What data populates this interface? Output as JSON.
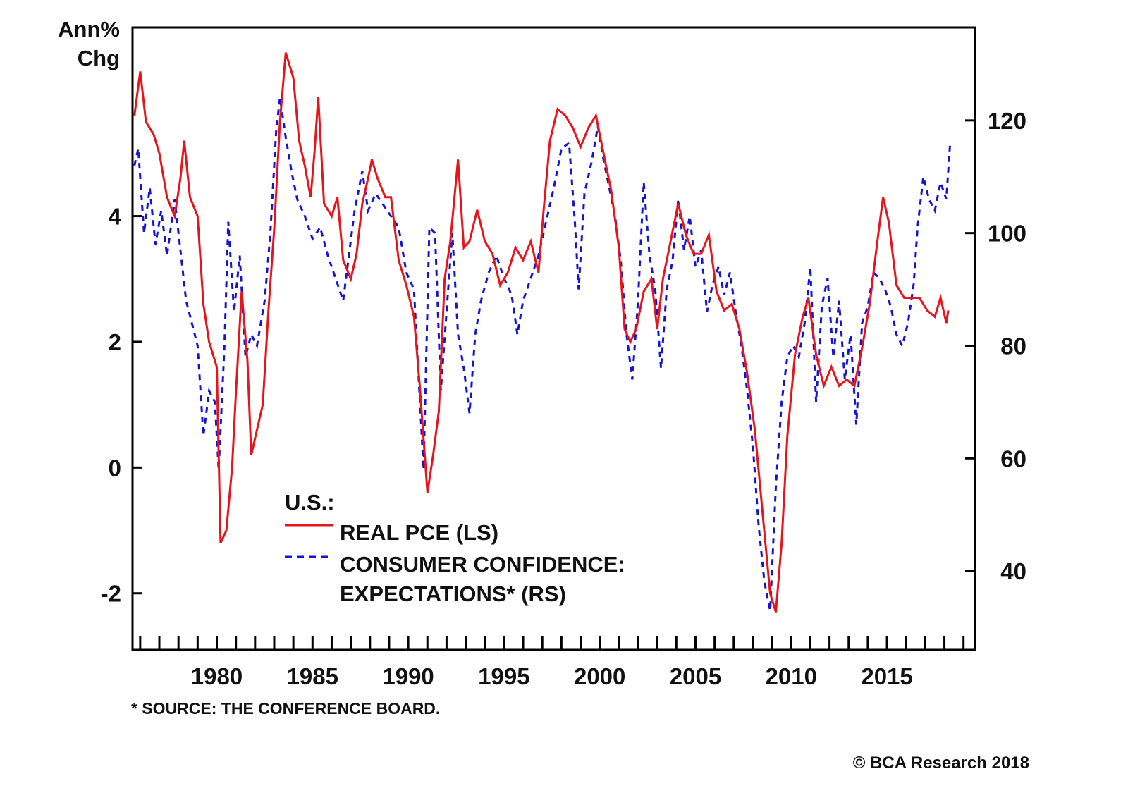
{
  "chart_data": {
    "type": "line",
    "title": "",
    "left_axis": {
      "label_line1": "Ann%",
      "label_line2": "Chg",
      "ticks": [
        4,
        2,
        0,
        -2
      ],
      "tick_labels": [
        "4",
        "2",
        "0",
        "-2"
      ],
      "range": [
        -2.9,
        7.0
      ]
    },
    "right_axis": {
      "ticks": [
        120,
        100,
        80,
        60,
        40
      ],
      "tick_labels": [
        "120",
        "100",
        "80",
        "60",
        "40"
      ],
      "range": [
        26.0,
        136.5
      ]
    },
    "x_axis": {
      "range": [
        1975.6,
        2019.6
      ],
      "tick_labels": [
        "1980",
        "1985",
        "1990",
        "1995",
        "2000",
        "2005",
        "2010",
        "2015"
      ],
      "label_years": [
        1980,
        1985,
        1990,
        1995,
        2000,
        2005,
        2010,
        2015
      ],
      "minor_tick_every_year": true
    },
    "legend": {
      "header": "U.S.:",
      "placement": "bottom-center-left",
      "entries": [
        {
          "label": "REAL PCE (LS)",
          "color": "#e8141b",
          "style": "solid"
        },
        {
          "label_line1": "CONSUMER CONFIDENCE:",
          "label_line2": "EXPECTATIONS* (RS)",
          "color": "#1414d2",
          "style": "dashed"
        }
      ]
    },
    "series": [
      {
        "name": "REAL PCE (LS)",
        "axis": "left",
        "color": "#e8141b",
        "style": "solid",
        "x": [
          1975.7,
          1976.0,
          1976.3,
          1976.7,
          1977.0,
          1977.4,
          1977.8,
          1978.1,
          1978.3,
          1978.6,
          1979.0,
          1979.3,
          1979.6,
          1980.0,
          1980.2,
          1980.5,
          1980.8,
          1981.0,
          1981.3,
          1981.6,
          1981.8,
          1982.1,
          1982.4,
          1982.7,
          1983.0,
          1983.3,
          1983.6,
          1984.0,
          1984.3,
          1984.6,
          1984.9,
          1985.1,
          1985.3,
          1985.6,
          1986.0,
          1986.3,
          1986.6,
          1987.0,
          1987.3,
          1987.6,
          1987.9,
          1988.1,
          1988.4,
          1988.8,
          1989.1,
          1989.5,
          1989.9,
          1990.3,
          1990.6,
          1991.0,
          1991.3,
          1991.6,
          1991.9,
          1992.2,
          1992.6,
          1992.9,
          1993.2,
          1993.6,
          1994.0,
          1994.4,
          1994.8,
          1995.2,
          1995.6,
          1996.0,
          1996.4,
          1996.8,
          1997.1,
          1997.4,
          1997.8,
          1998.2,
          1998.6,
          1999.0,
          1999.4,
          1999.8,
          2000.2,
          2000.6,
          2001.0,
          2001.3,
          2001.6,
          2001.9,
          2002.3,
          2002.7,
          2003.0,
          2003.3,
          2003.7,
          2004.1,
          2004.5,
          2004.9,
          2005.3,
          2005.7,
          2006.1,
          2006.5,
          2006.9,
          2007.3,
          2007.7,
          2008.1,
          2008.5,
          2008.9,
          2009.2,
          2009.5,
          2009.8,
          2010.2,
          2010.6,
          2010.9,
          2011.3,
          2011.7,
          2012.1,
          2012.5,
          2012.9,
          2013.3,
          2013.7,
          2014.1,
          2014.5,
          2014.8,
          2015.1,
          2015.5,
          2015.9,
          2016.3,
          2016.7,
          2017.1,
          2017.5,
          2017.8,
          2018.1,
          2018.2
        ],
        "values": [
          5.6,
          6.3,
          5.5,
          5.3,
          5.0,
          4.3,
          4.0,
          4.6,
          5.2,
          4.3,
          4.0,
          2.6,
          2.0,
          1.6,
          -1.2,
          -1.0,
          0.0,
          1.2,
          2.8,
          1.7,
          0.2,
          0.6,
          1.0,
          2.5,
          3.8,
          5.5,
          6.6,
          6.2,
          5.2,
          4.8,
          4.3,
          5.0,
          5.9,
          4.2,
          4.0,
          4.3,
          3.3,
          3.0,
          3.4,
          4.2,
          4.6,
          4.9,
          4.6,
          4.3,
          4.3,
          3.3,
          2.9,
          2.4,
          1.3,
          -0.4,
          0.2,
          0.9,
          3.0,
          3.6,
          4.9,
          3.5,
          3.6,
          4.1,
          3.6,
          3.4,
          2.9,
          3.1,
          3.5,
          3.3,
          3.6,
          3.1,
          4.2,
          5.2,
          5.7,
          5.6,
          5.4,
          5.1,
          5.4,
          5.6,
          5.0,
          4.4,
          3.5,
          2.2,
          2.0,
          2.2,
          2.8,
          3.0,
          2.2,
          3.0,
          3.6,
          4.2,
          3.7,
          3.4,
          3.4,
          3.7,
          2.8,
          2.5,
          2.6,
          2.2,
          1.5,
          0.6,
          -0.7,
          -2.0,
          -2.3,
          -1.2,
          0.5,
          1.8,
          2.4,
          2.7,
          1.8,
          1.3,
          1.6,
          1.3,
          1.4,
          1.3,
          1.9,
          2.6,
          3.6,
          4.3,
          3.9,
          2.9,
          2.7,
          2.7,
          2.7,
          2.5,
          2.4,
          2.7,
          2.3,
          2.5
        ]
      },
      {
        "name": "CONSUMER CONFIDENCE: EXPECTATIONS* (RS)",
        "axis": "right",
        "color": "#1414d2",
        "style": "dashed",
        "x": [
          1975.7,
          1975.9,
          1976.2,
          1976.5,
          1976.8,
          1977.1,
          1977.4,
          1977.8,
          1978.1,
          1978.4,
          1978.7,
          1979.0,
          1979.3,
          1979.6,
          1979.9,
          1980.1,
          1980.4,
          1980.6,
          1980.9,
          1981.2,
          1981.5,
          1981.8,
          1982.1,
          1982.5,
          1982.8,
          1983.1,
          1983.3,
          1983.6,
          1983.9,
          1984.2,
          1984.6,
          1985.0,
          1985.4,
          1985.8,
          1986.2,
          1986.6,
          1986.9,
          1987.2,
          1987.6,
          1987.9,
          1988.3,
          1988.7,
          1989.1,
          1989.5,
          1989.9,
          1990.3,
          1990.5,
          1990.8,
          1991.1,
          1991.4,
          1991.7,
          1992.0,
          1992.3,
          1992.6,
          1992.9,
          1993.2,
          1993.5,
          1993.8,
          1994.2,
          1994.6,
          1995.0,
          1995.4,
          1995.7,
          1996.0,
          1996.4,
          1996.8,
          1997.2,
          1997.6,
          1998.0,
          1998.4,
          1998.7,
          1998.9,
          1999.2,
          1999.6,
          1999.9,
          2000.2,
          2000.5,
          2000.8,
          2001.1,
          2001.4,
          2001.7,
          2002.0,
          2002.3,
          2002.6,
          2002.9,
          2003.2,
          2003.5,
          2003.8,
          2004.1,
          2004.4,
          2004.7,
          2005.0,
          2005.3,
          2005.6,
          2005.9,
          2006.2,
          2006.5,
          2006.8,
          2007.1,
          2007.4,
          2007.7,
          2008.0,
          2008.3,
          2008.6,
          2008.9,
          2009.2,
          2009.5,
          2009.8,
          2010.1,
          2010.4,
          2010.7,
          2011.0,
          2011.3,
          2011.6,
          2011.9,
          2012.2,
          2012.5,
          2012.8,
          2013.1,
          2013.4,
          2013.7,
          2014.0,
          2014.3,
          2014.6,
          2014.9,
          2015.2,
          2015.5,
          2015.8,
          2016.1,
          2016.4,
          2016.6,
          2016.9,
          2017.2,
          2017.5,
          2017.8,
          2018.1,
          2018.3
        ],
        "values": [
          112,
          115,
          100,
          108,
          98,
          104,
          96,
          106,
          97,
          88,
          84,
          80,
          64,
          72,
          70,
          58,
          80,
          102,
          86,
          96,
          78,
          82,
          80,
          88,
          100,
          118,
          124,
          117,
          111,
          106,
          103,
          99,
          101,
          96,
          92,
          88,
          96,
          104,
          111,
          104,
          107,
          105,
          103,
          101,
          93,
          90,
          77,
          58,
          101,
          100,
          72,
          86,
          100,
          82,
          76,
          68,
          82,
          88,
          93,
          96,
          92,
          89,
          82,
          88,
          92,
          96,
          102,
          108,
          115,
          116,
          102,
          90,
          107,
          113,
          119,
          113,
          108,
          103,
          95,
          82,
          74,
          88,
          109,
          96,
          90,
          76,
          90,
          95,
          106,
          97,
          103,
          94,
          97,
          86,
          91,
          94,
          89,
          93,
          86,
          80,
          72,
          62,
          48,
          38,
          33,
          55,
          70,
          78,
          80,
          78,
          84,
          94,
          70,
          87,
          92,
          78,
          88,
          74,
          82,
          66,
          84,
          87,
          93,
          92,
          90,
          87,
          82,
          80,
          84,
          91,
          101,
          110,
          106,
          104,
          109,
          106,
          116
        ]
      }
    ],
    "footnote": "* SOURCE: THE CONFERENCE BOARD.",
    "copyright": "© BCA Research 2018",
    "grid": false
  }
}
